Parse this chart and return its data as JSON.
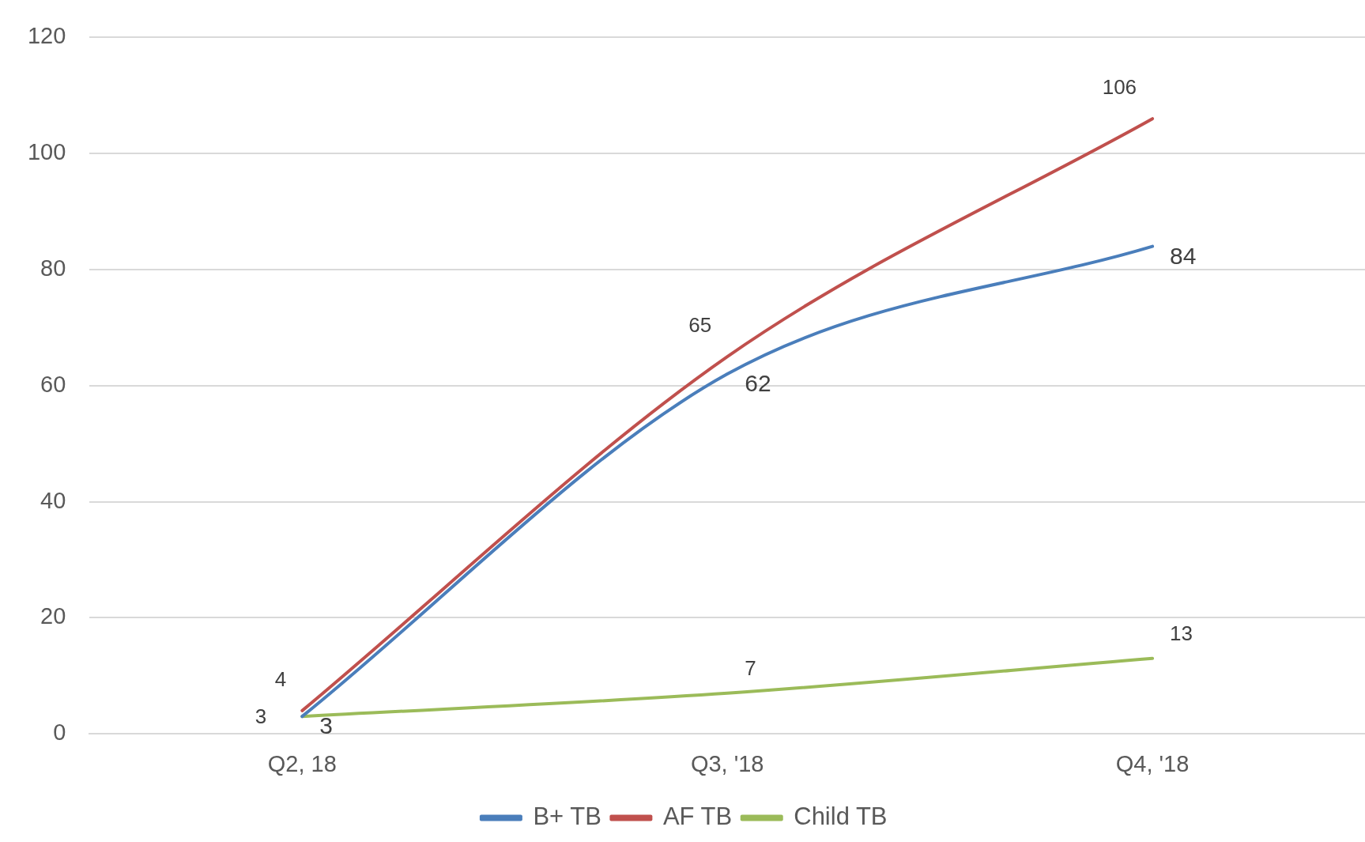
{
  "chart_data": {
    "type": "line",
    "categories": [
      "Q2, 18",
      "Q3, '18",
      "Q4, '18"
    ],
    "series": [
      {
        "name": "B+ TB",
        "color": "#4a7ebb",
        "values": [
          3,
          62,
          84
        ]
      },
      {
        "name": "AF TB",
        "color": "#c0504d",
        "values": [
          4,
          65,
          106
        ]
      },
      {
        "name": "Child TB",
        "color": "#9bbb59",
        "values": [
          3,
          7,
          13
        ]
      }
    ],
    "ylim": [
      0,
      120
    ],
    "yticks": [
      0,
      20,
      40,
      60,
      80,
      100,
      120
    ],
    "grid": "y",
    "legend": "bottom",
    "marker": "none",
    "line_style": "solid",
    "data_labels": true
  }
}
